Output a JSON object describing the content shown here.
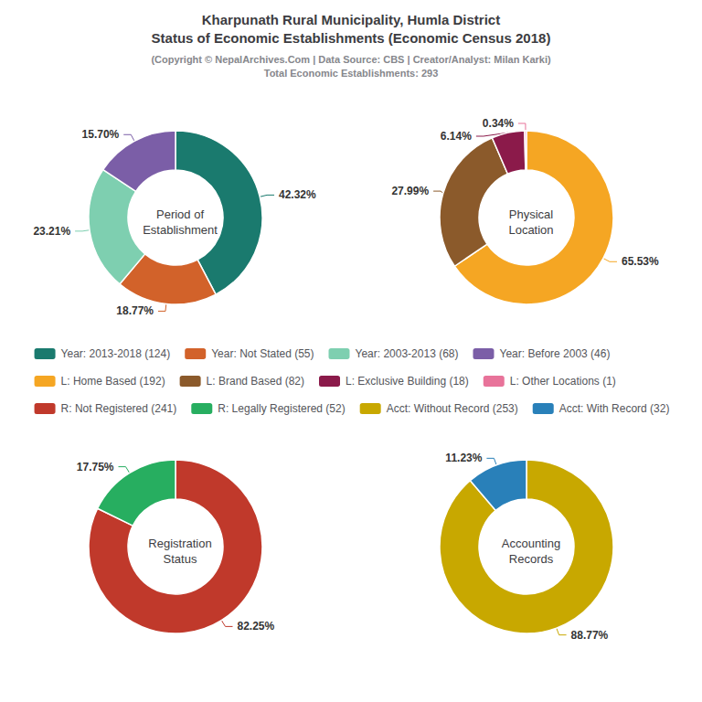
{
  "title": "Kharpunath Rural Municipality, Humla District\nStatus of Economic Establishments (Economic Census 2018)",
  "subtitle": "(Copyright © NepalArchives.Com | Data Source: CBS | Creator/Analyst: Milan Karki)\nTotal Economic Establishments: 293",
  "chart_data": [
    {
      "type": "pie",
      "title": "Period of\nEstablishment",
      "categories": [
        "Year: 2013-2018 (124)",
        "Year: Not Stated (55)",
        "Year: 2003-2013 (68)",
        "Year: Before 2003 (46)"
      ],
      "values": [
        42.32,
        18.77,
        23.21,
        15.7
      ],
      "value_labels": [
        "42.32%",
        "18.77%",
        "23.21%",
        "15.70%"
      ],
      "colors": [
        "#1a7a6e",
        "#d2622a",
        "#7ecfb0",
        "#7b5ea7"
      ],
      "data_labels": true,
      "legend": "center"
    },
    {
      "type": "pie",
      "title": "Physical\nLocation",
      "categories": [
        "L: Home Based (192)",
        "L: Brand Based (82)",
        "L: Exclusive Building (18)",
        "L: Other Locations (1)"
      ],
      "values": [
        65.53,
        27.99,
        6.14,
        0.34
      ],
      "value_labels": [
        "65.53%",
        "27.99%",
        "6.14%",
        "0.34%"
      ],
      "colors": [
        "#f5a623",
        "#8b5a2b",
        "#8b1a4a",
        "#e8739a"
      ],
      "data_labels": true,
      "legend": "center"
    },
    {
      "type": "pie",
      "title": "Registration\nStatus",
      "categories": [
        "R: Not Registered (241)",
        "R: Legally Registered (52)"
      ],
      "values": [
        82.25,
        17.75
      ],
      "value_labels": [
        "82.25%",
        "17.75%"
      ],
      "colors": [
        "#c0392b",
        "#27ae60"
      ],
      "data_labels": true,
      "legend": "center"
    },
    {
      "type": "pie",
      "title": "Accounting\nRecords",
      "categories": [
        "Acct: Without Record (253)",
        "Acct: With Record (32)"
      ],
      "values": [
        88.77,
        11.23
      ],
      "value_labels": [
        "88.77%",
        "11.23%"
      ],
      "colors": [
        "#c8a800",
        "#2980b9"
      ],
      "data_labels": true,
      "legend": "center"
    }
  ]
}
